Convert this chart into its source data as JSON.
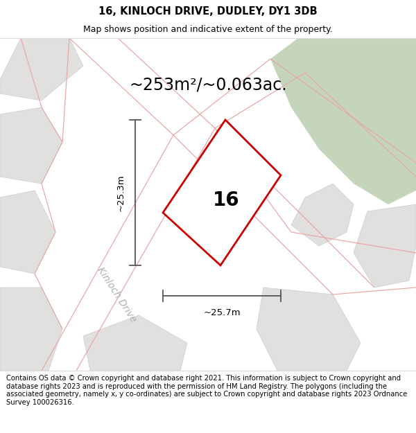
{
  "title": "16, KINLOCH DRIVE, DUDLEY, DY1 3DB",
  "subtitle": "Map shows position and indicative extent of the property.",
  "footer": "Contains OS data © Crown copyright and database right 2021. This information is subject to Crown copyright and database rights 2023 and is reproduced with the permission of HM Land Registry. The polygons (including the associated geometry, namely x, y co-ordinates) are subject to Crown copyright and database rights 2023 Ordnance Survey 100026316.",
  "area_label": "~253m²/~0.063ac.",
  "number_label": "16",
  "dim_vertical": "~25.3m",
  "dim_horizontal": "~25.7m",
  "road_label": "Kinloch Drive",
  "map_bg": "#eeecec",
  "green_area_color": "#c5d5bc",
  "road_line_color": "#e8a8a8",
  "plot_border_color": "#cc0000",
  "dim_line_color": "#555555",
  "block_fill": "#e2dfdf",
  "block_edge": "#cccccc",
  "title_fontsize": 10.5,
  "subtitle_fontsize": 9,
  "footer_fontsize": 7.2,
  "area_label_fontsize": 17,
  "number_label_fontsize": 20,
  "road_label_fontsize": 10,
  "dim_fontsize": 9.5
}
